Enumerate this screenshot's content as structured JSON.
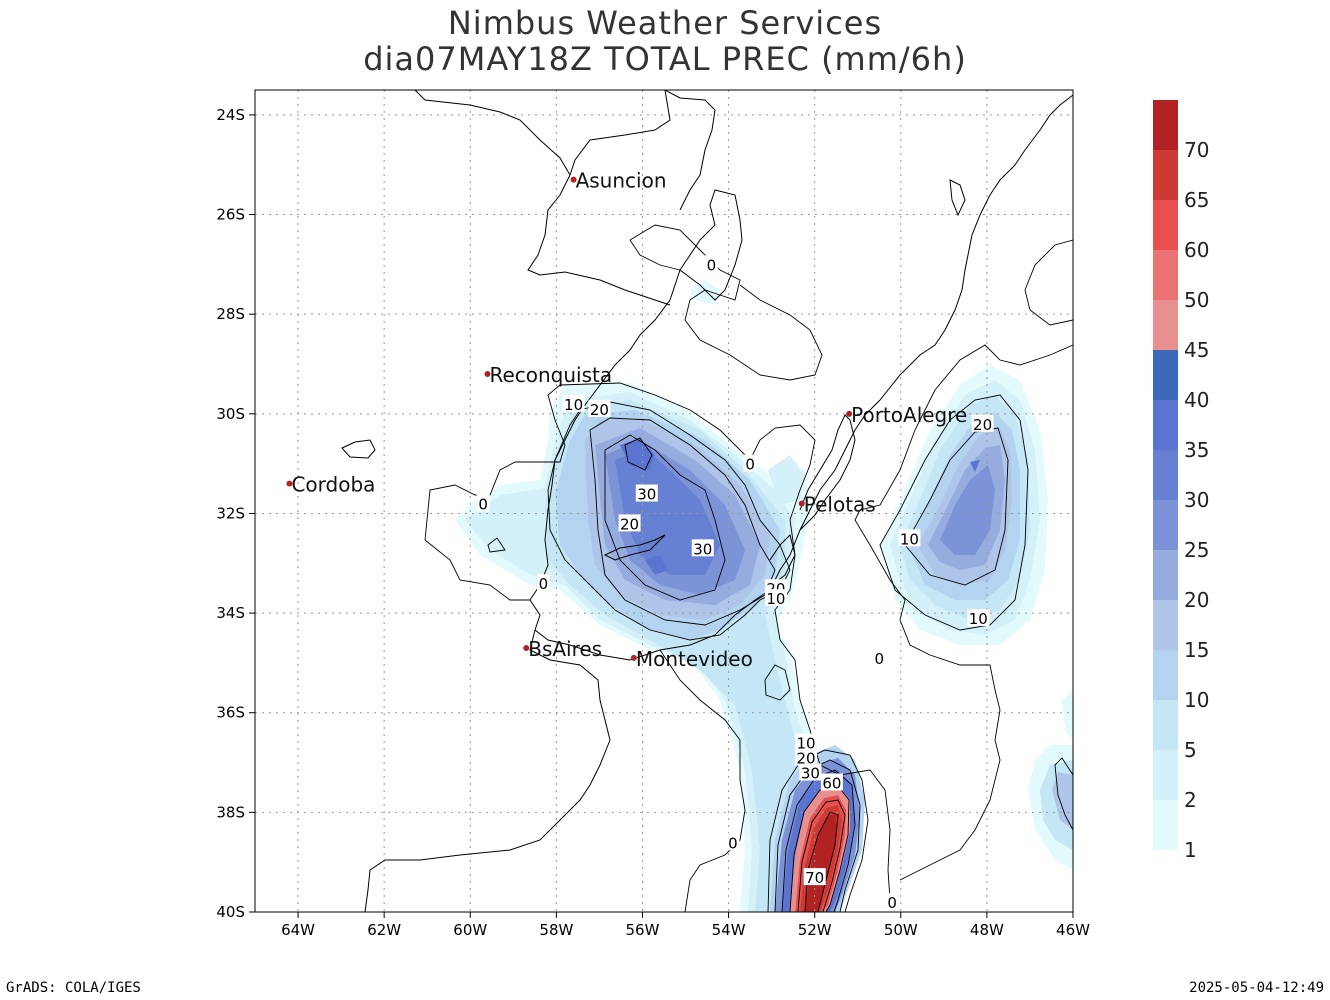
{
  "header": {
    "title": "Nimbus Weather Services",
    "subtitle": "dia07MAY18Z TOTAL PREC (mm/6h)"
  },
  "map": {
    "lon_range": [
      -65,
      -46
    ],
    "lat_range": [
      -40,
      -23.5
    ],
    "lon_ticks": [
      "64W",
      "62W",
      "60W",
      "58W",
      "56W",
      "54W",
      "52W",
      "50W",
      "48W",
      "46W"
    ],
    "lat_ticks": [
      "24S",
      "26S",
      "28S",
      "30S",
      "32S",
      "34S",
      "36S",
      "38S",
      "40S"
    ],
    "cities": [
      {
        "name": "Asuncion",
        "lon": -57.6,
        "lat": -25.3
      },
      {
        "name": "Reconquista",
        "lon": -59.6,
        "lat": -29.2
      },
      {
        "name": "Cordoba",
        "lon": -64.2,
        "lat": -31.4
      },
      {
        "name": "PortoAlegre",
        "lon": -51.2,
        "lat": -30.0
      },
      {
        "name": "Pelotas",
        "lon": -52.3,
        "lat": -31.8
      },
      {
        "name": "BsAires",
        "lon": -58.7,
        "lat": -34.7
      },
      {
        "name": "Montevideo",
        "lon": -56.2,
        "lat": -34.9
      }
    ],
    "contour_labels": [
      {
        "text": "10",
        "lon": -57.6,
        "lat": -29.8
      },
      {
        "text": "20",
        "lon": -57.0,
        "lat": -29.9
      },
      {
        "text": "0",
        "lon": -53.5,
        "lat": -31.0
      },
      {
        "text": "30",
        "lon": -55.9,
        "lat": -31.6
      },
      {
        "text": "0",
        "lon": -59.7,
        "lat": -31.8
      },
      {
        "text": "20",
        "lon": -56.3,
        "lat": -32.2
      },
      {
        "text": "30",
        "lon": -54.6,
        "lat": -32.7
      },
      {
        "text": "0",
        "lon": -58.3,
        "lat": -33.4
      },
      {
        "text": "20",
        "lon": -52.9,
        "lat": -33.5
      },
      {
        "text": "10",
        "lon": -52.9,
        "lat": -33.7
      },
      {
        "text": "10",
        "lon": -49.8,
        "lat": -32.5
      },
      {
        "text": "20",
        "lon": -48.1,
        "lat": -30.2
      },
      {
        "text": "10",
        "lon": -48.2,
        "lat": -34.1
      },
      {
        "text": "0",
        "lon": -50.5,
        "lat": -34.9
      },
      {
        "text": "0",
        "lon": -54.4,
        "lat": -27.0
      },
      {
        "text": "10",
        "lon": -52.2,
        "lat": -36.6
      },
      {
        "text": "20",
        "lon": -52.2,
        "lat": -36.9
      },
      {
        "text": "30",
        "lon": -52.1,
        "lat": -37.2
      },
      {
        "text": "60",
        "lon": -51.6,
        "lat": -37.4
      },
      {
        "text": "70",
        "lon": -52.0,
        "lat": -39.3
      },
      {
        "text": "0",
        "lon": -53.9,
        "lat": -38.6
      },
      {
        "text": "0",
        "lon": -50.2,
        "lat": -39.8
      }
    ]
  },
  "colorbar": {
    "levels": [
      "70",
      "65",
      "60",
      "50",
      "45",
      "40",
      "35",
      "30",
      "25",
      "20",
      "15",
      "10",
      "5",
      "2",
      "1"
    ],
    "colors": [
      "#b22222",
      "#cc3a33",
      "#e85050",
      "#ea7272",
      "#e89090",
      "#3d6ab8",
      "#5a74d0",
      "#6680d4",
      "#7d93d8",
      "#97acde",
      "#aec4e8",
      "#b4d3f0",
      "#c5e6f4",
      "#d4f0f8",
      "#e2fafc"
    ]
  },
  "footer": {
    "left": "GrADS: COLA/IGES",
    "right": "2025-05-04-12:49"
  }
}
